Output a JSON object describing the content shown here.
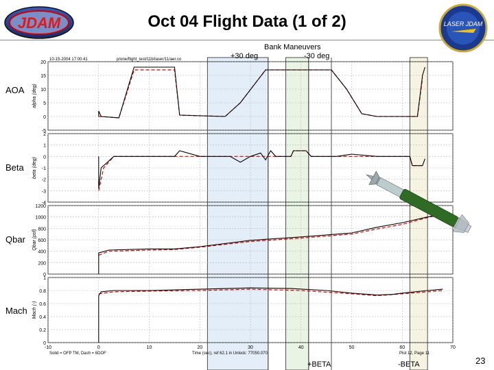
{
  "slide": {
    "title": "Oct 04 Flight Data (1 of 2)",
    "page_number": "23",
    "logo_left_text": "JDAM",
    "logo_right_text": "LASER JDAM"
  },
  "annotations": {
    "bank": "Bank Maneuvers",
    "plus30": "+30 deg",
    "minus30": "-30 deg",
    "beta1": "+BETA",
    "beta2": "-BETA"
  },
  "plot_header": {
    "left": "10-15-2004 17:00:41",
    "mid": "p/one/flight_test/11b/laser/11/aer.co",
    "footer_left": "Solid = OFP TM, Dash = 6DOF",
    "footer_mid": "Time (sec), ref 62.1 in Unlock: 77050.070",
    "footer_right": "Plot 12, Page 11"
  },
  "chart_data": {
    "type": "line",
    "x_ticks": [
      -10,
      0,
      10,
      20,
      30,
      40,
      50,
      60,
      70
    ],
    "xlim": [
      -10,
      70
    ],
    "grid": true,
    "legend": "none",
    "series_styles": [
      {
        "label": "Solid = OFP TM",
        "color": "#000000",
        "dash": "solid"
      },
      {
        "label": "Dash = 6DOF",
        "color": "#d00000",
        "dash": "dashed"
      }
    ],
    "shaded_ranges": [
      [
        21.5,
        33.5
      ],
      [
        37,
        41.5
      ],
      [
        61.5,
        65
      ]
    ],
    "vlines": [
      33.5,
      41.5,
      46
    ],
    "subplots": [
      {
        "name": "AOA",
        "ylabel": "AOA",
        "unit": "alpha (deg)",
        "ylim": [
          -5,
          20
        ],
        "yticks": [
          -5,
          0,
          5,
          10,
          15,
          20
        ],
        "solid": [
          [
            0,
            0
          ],
          [
            0,
            2
          ],
          [
            0.5,
            0
          ],
          [
            4,
            -0.5
          ],
          [
            7,
            18
          ],
          [
            15,
            18
          ],
          [
            16,
            0.5
          ],
          [
            25,
            0
          ],
          [
            28,
            5
          ],
          [
            33,
            17
          ],
          [
            41,
            17
          ],
          [
            46,
            17
          ],
          [
            49,
            10
          ],
          [
            52,
            1
          ],
          [
            55,
            0
          ],
          [
            58,
            0
          ],
          [
            63,
            0
          ],
          [
            64,
            15
          ],
          [
            64.5,
            18
          ]
        ],
        "dash": [
          [
            0,
            0
          ],
          [
            0.5,
            0
          ],
          [
            4,
            -0.5
          ],
          [
            7,
            17
          ],
          [
            15,
            17
          ],
          [
            16,
            0.5
          ],
          [
            25,
            0
          ],
          [
            28,
            5
          ],
          [
            33,
            17
          ],
          [
            41,
            17
          ],
          [
            46,
            17
          ],
          [
            49,
            10
          ],
          [
            52,
            1
          ],
          [
            55,
            0
          ],
          [
            58,
            0
          ],
          [
            63,
            0
          ],
          [
            64,
            14
          ]
        ]
      },
      {
        "name": "Beta",
        "ylabel": "Beta",
        "unit": "beta (deg)",
        "ylim": [
          -4,
          2
        ],
        "yticks": [
          -4,
          -3,
          -2,
          -1,
          0,
          1,
          2
        ],
        "solid": [
          [
            0,
            0
          ],
          [
            0,
            -2.8
          ],
          [
            0.5,
            -1
          ],
          [
            3,
            0
          ],
          [
            15,
            0
          ],
          [
            16,
            0.5
          ],
          [
            20,
            0
          ],
          [
            26,
            0
          ],
          [
            28,
            -0.5
          ],
          [
            30,
            0
          ],
          [
            32,
            0.3
          ],
          [
            33,
            -0.3
          ],
          [
            34,
            0.5
          ],
          [
            35,
            0
          ],
          [
            38,
            0
          ],
          [
            38.5,
            0.5
          ],
          [
            41,
            0.5
          ],
          [
            42,
            0
          ],
          [
            47,
            0
          ],
          [
            50,
            0.2
          ],
          [
            55,
            0
          ],
          [
            60,
            0
          ],
          [
            61.5,
            0
          ],
          [
            62,
            -0.8
          ],
          [
            64,
            -0.8
          ],
          [
            64.5,
            -0.2
          ]
        ],
        "dash": [
          [
            0,
            -3
          ],
          [
            1,
            -1
          ],
          [
            3,
            0
          ],
          [
            20,
            0
          ],
          [
            30,
            0
          ],
          [
            38,
            0
          ],
          [
            38.5,
            0.5
          ],
          [
            41,
            0.5
          ],
          [
            42,
            0
          ],
          [
            60,
            0
          ],
          [
            61.5,
            0
          ],
          [
            62,
            -0.8
          ],
          [
            64,
            -0.8
          ]
        ]
      },
      {
        "name": "Qbar",
        "ylabel": "Qbar",
        "unit": "Qbar (psf)",
        "ylim": [
          0,
          1200
        ],
        "yticks": [
          0,
          200,
          400,
          600,
          800,
          1000,
          1200
        ],
        "solid": [
          [
            0,
            0
          ],
          [
            0,
            370
          ],
          [
            2,
            420
          ],
          [
            10,
            440
          ],
          [
            15,
            440
          ],
          [
            20,
            480
          ],
          [
            30,
            590
          ],
          [
            40,
            650
          ],
          [
            50,
            720
          ],
          [
            55,
            820
          ],
          [
            60,
            900
          ],
          [
            65,
            1000
          ],
          [
            68,
            1060
          ]
        ],
        "dash": [
          [
            0,
            330
          ],
          [
            2,
            400
          ],
          [
            10,
            420
          ],
          [
            15,
            430
          ],
          [
            20,
            470
          ],
          [
            30,
            570
          ],
          [
            40,
            630
          ],
          [
            50,
            700
          ],
          [
            55,
            790
          ],
          [
            60,
            870
          ],
          [
            65,
            990
          ],
          [
            68,
            1050
          ]
        ]
      },
      {
        "name": "Mach",
        "ylabel": "Mach",
        "unit": "Mach (-)",
        "ylim": [
          0,
          1
        ],
        "yticks": [
          0,
          0.2,
          0.4,
          0.6,
          0.8,
          1
        ],
        "solid": [
          [
            0,
            0
          ],
          [
            0,
            0.72
          ],
          [
            0.5,
            0.78
          ],
          [
            3,
            0.8
          ],
          [
            10,
            0.8
          ],
          [
            20,
            0.82
          ],
          [
            30,
            0.84
          ],
          [
            38,
            0.83
          ],
          [
            45,
            0.8
          ],
          [
            50,
            0.76
          ],
          [
            55,
            0.73
          ],
          [
            58,
            0.74
          ],
          [
            60,
            0.76
          ],
          [
            65,
            0.8
          ],
          [
            68,
            0.82
          ]
        ],
        "dash": [
          [
            0,
            0.75
          ],
          [
            3,
            0.78
          ],
          [
            10,
            0.79
          ],
          [
            20,
            0.8
          ],
          [
            30,
            0.82
          ],
          [
            40,
            0.8
          ],
          [
            50,
            0.75
          ],
          [
            55,
            0.72
          ],
          [
            60,
            0.75
          ],
          [
            65,
            0.78
          ],
          [
            68,
            0.8
          ]
        ]
      }
    ]
  }
}
